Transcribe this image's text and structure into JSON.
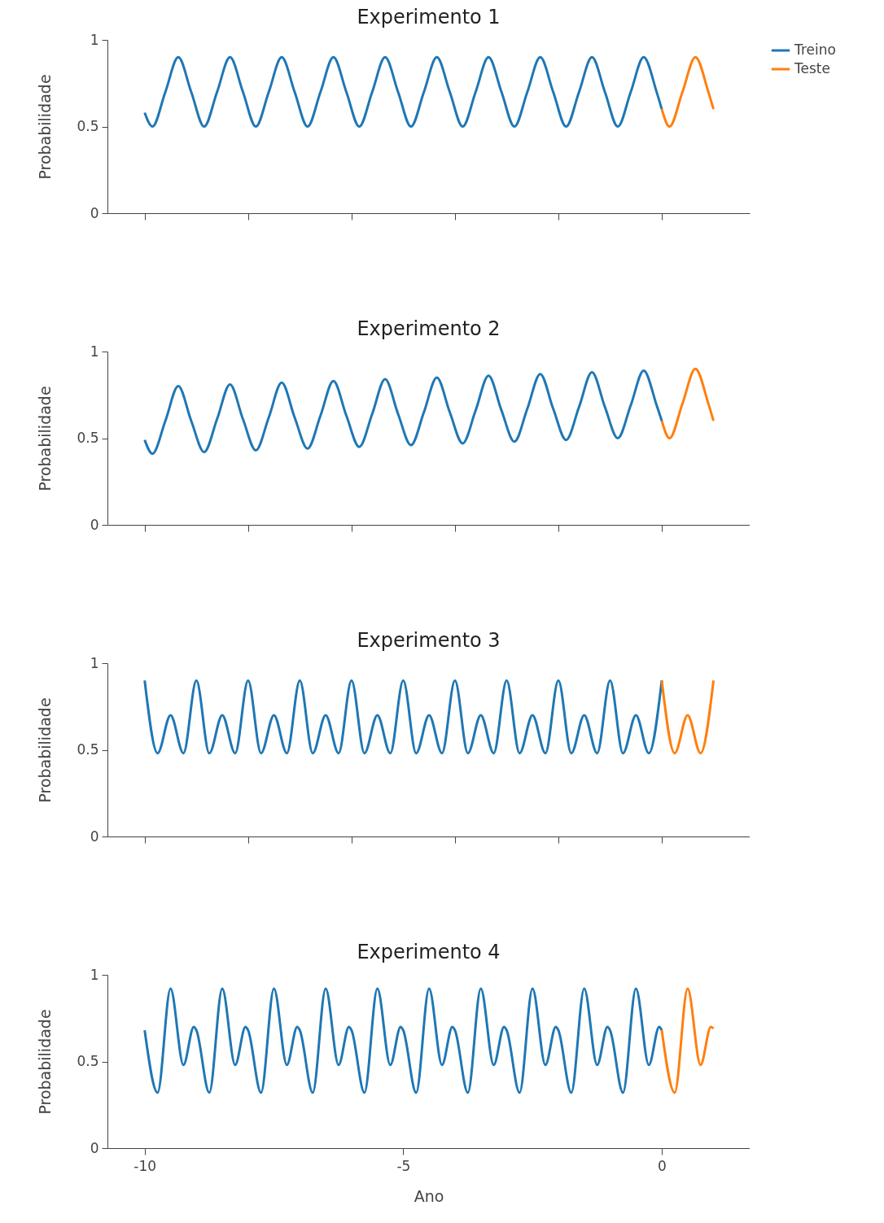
{
  "chart_data": [
    {
      "type": "line",
      "title": "Experimento 1",
      "ylabel": "Probabilidade",
      "xlim": [
        -10.72,
        1.7
      ],
      "ylim": [
        0,
        1
      ],
      "yticks": [
        0,
        0.5,
        1
      ],
      "xticks": [
        {
          "value": -10,
          "label": null
        },
        {
          "value": -8,
          "label": null
        },
        {
          "value": -6,
          "label": null
        },
        {
          "value": -4,
          "label": null
        },
        {
          "value": -2,
          "label": null
        },
        {
          "value": 0,
          "label": null
        }
      ],
      "tick_labels": "y",
      "legend": "top right",
      "grid": false,
      "series": [
        {
          "name": "Treino",
          "color": "#1f77b4",
          "x": [
            -10,
            -9.85,
            -9.6,
            -9.35,
            -9.1,
            -8.85,
            -8.6,
            -8.35,
            -8.1,
            -7.85,
            -7.6,
            -7.35,
            -7.1,
            -6.85,
            -6.6,
            -6.35,
            -6.1,
            -5.85,
            -5.6,
            -5.35,
            -5.1,
            -4.85,
            -4.6,
            -4.35,
            -4.1,
            -3.85,
            -3.6,
            -3.35,
            -3.1,
            -2.85,
            -2.6,
            -2.35,
            -2.1,
            -1.85,
            -1.6,
            -1.35,
            -1.1,
            -0.85,
            -0.6,
            -0.35,
            -0.1,
            0
          ],
          "values": [
            0.58,
            0.5,
            0.7,
            0.9,
            0.7,
            0.5,
            0.7,
            0.9,
            0.7,
            0.5,
            0.7,
            0.9,
            0.7,
            0.5,
            0.7,
            0.9,
            0.7,
            0.5,
            0.7,
            0.9,
            0.7,
            0.5,
            0.7,
            0.9,
            0.7,
            0.5,
            0.7,
            0.9,
            0.7,
            0.5,
            0.7,
            0.9,
            0.7,
            0.5,
            0.7,
            0.9,
            0.7,
            0.5,
            0.7,
            0.9,
            0.7,
            0.6
          ]
        },
        {
          "name": "Teste",
          "color": "#ff7f0e",
          "x": [
            0,
            0.15,
            0.4,
            0.65,
            0.9,
            1
          ],
          "values": [
            0.6,
            0.5,
            0.7,
            0.9,
            0.7,
            0.6
          ]
        }
      ]
    },
    {
      "type": "line",
      "title": "Experimento 2",
      "ylabel": "Probabilidade",
      "xlim": [
        -10.72,
        1.7
      ],
      "ylim": [
        0,
        1
      ],
      "yticks": [
        0,
        0.5,
        1
      ],
      "xticks": [
        {
          "value": -10,
          "label": null
        },
        {
          "value": -8,
          "label": null
        },
        {
          "value": -6,
          "label": null
        },
        {
          "value": -4,
          "label": null
        },
        {
          "value": -2,
          "label": null
        },
        {
          "value": 0,
          "label": null
        }
      ],
      "tick_labels": "y",
      "grid": false,
      "series": [
        {
          "color": "#1f77b4",
          "x": [
            -10,
            -9.85,
            -9.6,
            -9.35,
            -9.1,
            -8.85,
            -8.6,
            -8.35,
            -8.1,
            -7.85,
            -7.6,
            -7.35,
            -7.1,
            -6.85,
            -6.6,
            -6.35,
            -6.1,
            -5.85,
            -5.6,
            -5.35,
            -5.1,
            -4.85,
            -4.6,
            -4.35,
            -4.1,
            -3.85,
            -3.6,
            -3.35,
            -3.1,
            -2.85,
            -2.6,
            -2.35,
            -2.1,
            -1.85,
            -1.6,
            -1.35,
            -1.1,
            -0.85,
            -0.6,
            -0.35,
            -0.1,
            0
          ],
          "values": [
            0.49,
            0.41,
            0.6,
            0.8,
            0.6,
            0.42,
            0.61,
            0.81,
            0.61,
            0.43,
            0.62,
            0.82,
            0.62,
            0.44,
            0.63,
            0.83,
            0.63,
            0.45,
            0.64,
            0.84,
            0.64,
            0.46,
            0.65,
            0.85,
            0.65,
            0.47,
            0.66,
            0.86,
            0.66,
            0.48,
            0.67,
            0.87,
            0.67,
            0.49,
            0.68,
            0.88,
            0.68,
            0.5,
            0.69,
            0.89,
            0.69,
            0.6
          ]
        },
        {
          "color": "#ff7f0e",
          "x": [
            0,
            0.15,
            0.4,
            0.65,
            0.9,
            1
          ],
          "values": [
            0.6,
            0.5,
            0.7,
            0.9,
            0.7,
            0.6
          ]
        }
      ]
    },
    {
      "type": "line",
      "title": "Experimento 3",
      "ylabel": "Probabilidade",
      "xlim": [
        -10.72,
        1.7
      ],
      "ylim": [
        0,
        1
      ],
      "yticks": [
        0,
        0.5,
        1
      ],
      "xticks": [
        {
          "value": -10,
          "label": null
        },
        {
          "value": -8,
          "label": null
        },
        {
          "value": -6,
          "label": null
        },
        {
          "value": -4,
          "label": null
        },
        {
          "value": -2,
          "label": null
        },
        {
          "value": 0,
          "label": null
        }
      ],
      "tick_labels": "y",
      "grid": false,
      "series": [
        {
          "color": "#1f77b4",
          "x": [
            -10,
            -9.75,
            -9.5,
            -9.25,
            -9,
            -8.75,
            -8.5,
            -8.25,
            -8,
            -7.75,
            -7.5,
            -7.25,
            -7,
            -6.75,
            -6.5,
            -6.25,
            -6,
            -5.75,
            -5.5,
            -5.25,
            -5,
            -4.75,
            -4.5,
            -4.25,
            -4,
            -3.75,
            -3.5,
            -3.25,
            -3,
            -2.75,
            -2.5,
            -2.25,
            -2,
            -1.75,
            -1.5,
            -1.25,
            -1,
            -0.75,
            -0.5,
            -0.25,
            0
          ],
          "values": [
            0.9,
            0.48,
            0.7,
            0.48,
            0.9,
            0.48,
            0.7,
            0.48,
            0.9,
            0.48,
            0.7,
            0.48,
            0.9,
            0.48,
            0.7,
            0.48,
            0.9,
            0.48,
            0.7,
            0.48,
            0.9,
            0.48,
            0.7,
            0.48,
            0.9,
            0.48,
            0.7,
            0.48,
            0.9,
            0.48,
            0.7,
            0.48,
            0.9,
            0.48,
            0.7,
            0.48,
            0.9,
            0.48,
            0.7,
            0.48,
            0.9
          ]
        },
        {
          "color": "#ff7f0e",
          "x": [
            0,
            0.25,
            0.5,
            0.75,
            1
          ],
          "values": [
            0.9,
            0.48,
            0.7,
            0.48,
            0.9
          ]
        }
      ]
    },
    {
      "type": "line",
      "title": "Experimento 4",
      "ylabel": "Probabilidade",
      "xlabel": "Ano",
      "xlim": [
        -10.72,
        1.7
      ],
      "ylim": [
        0,
        1
      ],
      "yticks": [
        0,
        0.5,
        1
      ],
      "xticks": [
        -10,
        -5,
        0
      ],
      "grid": false,
      "series": [
        {
          "color": "#1f77b4",
          "x": [
            -10,
            -9.75,
            -9.5,
            -9.25,
            -9.05,
            -9,
            -8.75,
            -8.5,
            -8.25,
            -8.05,
            -8,
            -7.75,
            -7.5,
            -7.25,
            -7.05,
            -7,
            -6.75,
            -6.5,
            -6.25,
            -6.05,
            -6,
            -5.75,
            -5.5,
            -5.25,
            -5.05,
            -5,
            -4.75,
            -4.5,
            -4.25,
            -4.05,
            -4,
            -3.75,
            -3.5,
            -3.25,
            -3.05,
            -3,
            -2.75,
            -2.5,
            -2.25,
            -2.05,
            -2,
            -1.75,
            -1.5,
            -1.25,
            -1.05,
            -1,
            -0.75,
            -0.5,
            -0.25,
            -0.05,
            0
          ],
          "values": [
            0.68,
            0.32,
            0.92,
            0.48,
            0.7,
            0.68,
            0.32,
            0.92,
            0.48,
            0.7,
            0.68,
            0.32,
            0.92,
            0.48,
            0.7,
            0.68,
            0.32,
            0.92,
            0.48,
            0.7,
            0.68,
            0.32,
            0.92,
            0.48,
            0.7,
            0.68,
            0.32,
            0.92,
            0.48,
            0.7,
            0.68,
            0.32,
            0.92,
            0.48,
            0.7,
            0.68,
            0.32,
            0.92,
            0.48,
            0.7,
            0.68,
            0.32,
            0.92,
            0.48,
            0.7,
            0.68,
            0.32,
            0.92,
            0.48,
            0.7,
            0.68
          ]
        },
        {
          "color": "#ff7f0e",
          "x": [
            0,
            0.25,
            0.5,
            0.75,
            0.95,
            1
          ],
          "values": [
            0.68,
            0.32,
            0.92,
            0.48,
            0.7,
            0.69
          ]
        }
      ]
    }
  ]
}
